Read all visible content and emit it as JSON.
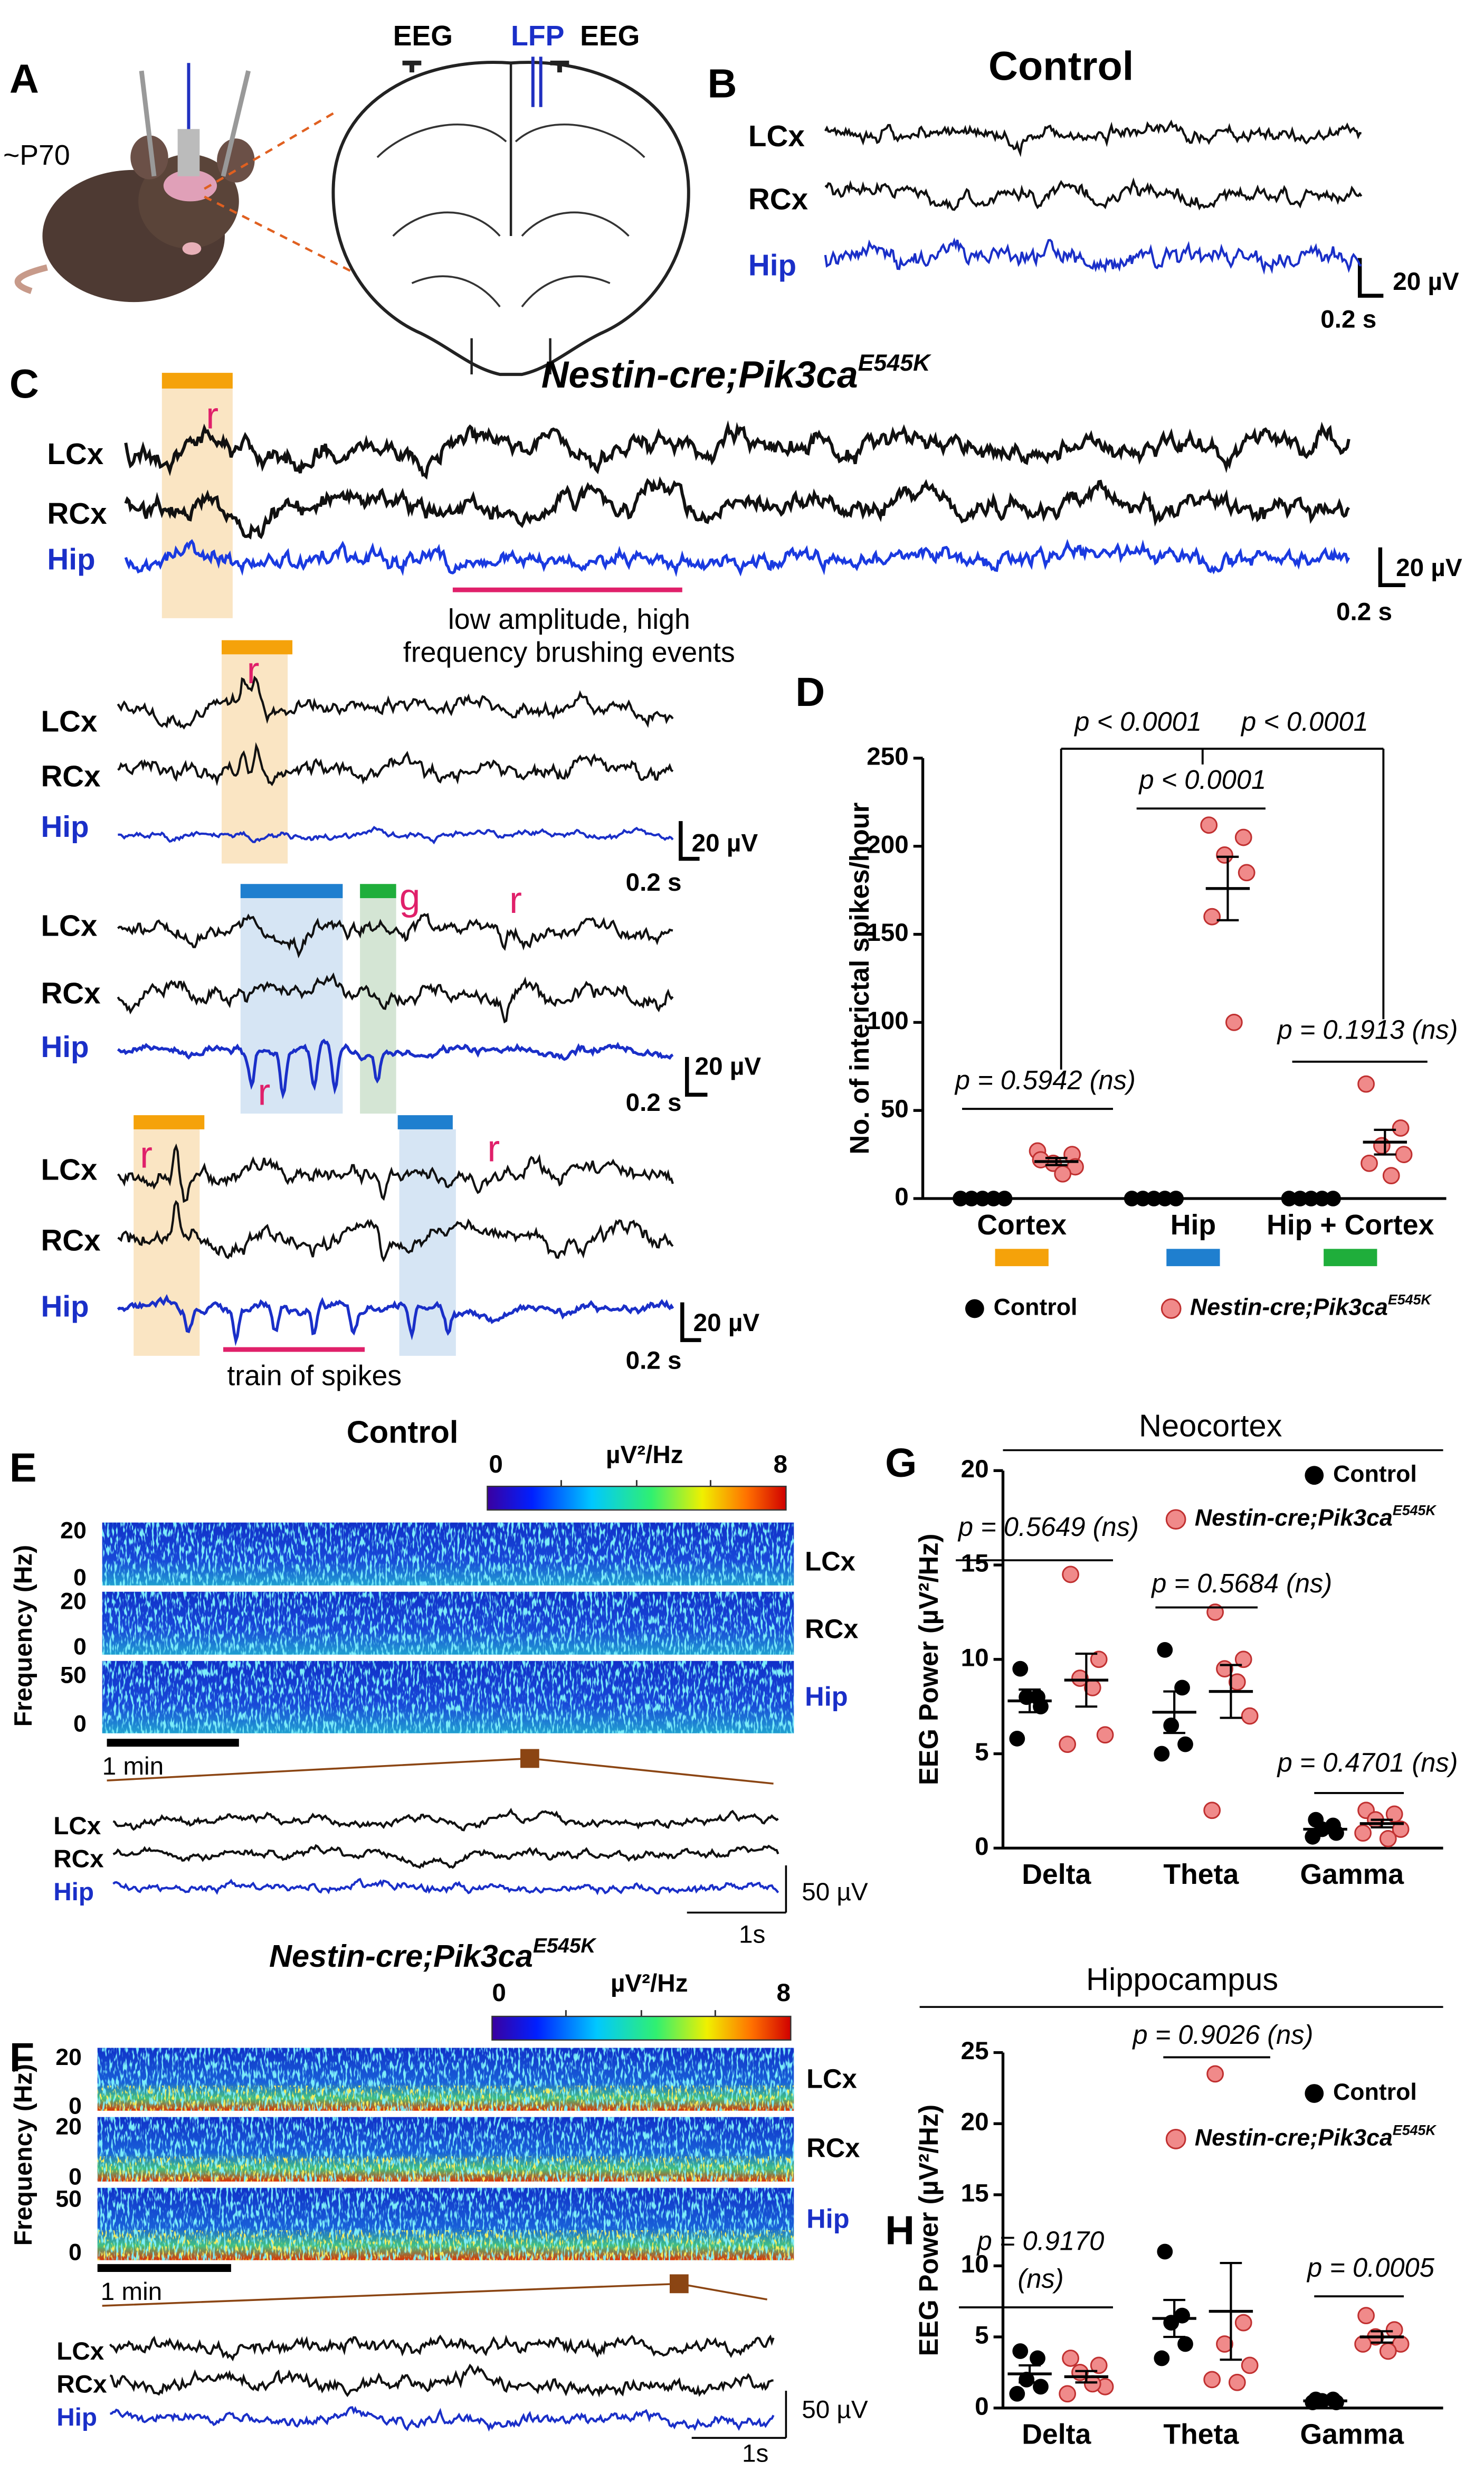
{
  "panel_A": {
    "label": "A",
    "age": "~P70",
    "electrode_left": "EEG",
    "electrode_center": "LFP",
    "electrode_right": "EEG"
  },
  "panel_B": {
    "label": "B",
    "title": "Control",
    "channels": [
      "LCx",
      "RCx",
      "Hip"
    ],
    "scale_voltage": "20 µV",
    "scale_time": "0.2 s"
  },
  "panel_C": {
    "label": "C",
    "title": "Nestin-cre;Pik3ca",
    "title_sup": "E545K",
    "channels": [
      "LCx",
      "RCx",
      "Hip"
    ],
    "scale_voltage": "20 µV",
    "scale_time": "0.2 s",
    "marker_r": "r",
    "marker_g": "g",
    "brushing_note": [
      "low amplitude, high",
      "frequency brushing events"
    ],
    "train_note": "train of spikes"
  },
  "chart_data": [
    {
      "panel": "D",
      "type": "dotplot",
      "ylabel": "No. of interictal spikes/hour",
      "categories": [
        "Cortex",
        "Hip",
        "Hip + Cortex"
      ],
      "category_colors": [
        "#f5a20a",
        "#1f7fcf",
        "#1fae3b"
      ],
      "ylim": [
        0,
        250
      ],
      "yticks": [
        0,
        50,
        100,
        150,
        200,
        250
      ],
      "legend": "below",
      "series": [
        {
          "name": "Control",
          "color": "#000000",
          "values": [
            [
              0,
              0,
              0,
              0,
              0
            ],
            [
              0,
              0,
              0,
              0,
              0
            ],
            [
              0,
              0,
              0,
              0,
              0
            ]
          ],
          "mean": [
            0,
            0,
            0
          ],
          "sem": [
            0,
            0,
            0
          ]
        },
        {
          "name": "Nestin-cre;Pik3ca",
          "name_sup": "E545K",
          "color": "#f08a8a",
          "values": [
            [
              27,
              25,
              20,
              18,
              22,
              14
            ],
            [
              212,
              205,
              195,
              185,
              160,
              100
            ],
            [
              65,
              40,
              30,
              25,
              20,
              13
            ]
          ],
          "mean": [
            21,
            176,
            32
          ],
          "sem": [
            2,
            18,
            7
          ]
        }
      ],
      "annotations": [
        "p < 0.0001",
        "p < 0.0001",
        "p < 0.0001",
        "p = 0.5942 (ns)",
        "p = 0.1913 (ns)"
      ]
    },
    {
      "panel": "G",
      "type": "dotplot",
      "title": "Neocortex",
      "ylabel": "EEG Power (µV²/Hz)",
      "categories": [
        "Delta",
        "Theta",
        "Gamma"
      ],
      "ylim": [
        0,
        20
      ],
      "yticks": [
        0,
        5,
        10,
        15,
        20
      ],
      "legend": "upper right",
      "series": [
        {
          "name": "Control",
          "color": "#000000",
          "values": [
            [
              9.5,
              8,
              8,
              7.5,
              5.8
            ],
            [
              10.5,
              8.5,
              6.5,
              5.5,
              5
            ],
            [
              1.5,
              1.2,
              1,
              0.8,
              0.6
            ]
          ],
          "mean": [
            7.8,
            7.2,
            1.0
          ],
          "sem": [
            0.6,
            1.1,
            0.2
          ]
        },
        {
          "name": "Nestin-cre;Pik3ca",
          "name_sup": "E545K",
          "color": "#f08a8a",
          "values": [
            [
              14.5,
              10,
              9,
              6,
              5.5,
              8.5
            ],
            [
              12.5,
              10,
              9.5,
              7,
              2,
              8.8
            ],
            [
              2,
              1.8,
              1.5,
              1,
              0.8,
              0.5
            ]
          ],
          "mean": [
            8.9,
            8.3,
            1.3
          ],
          "sem": [
            1.4,
            1.4,
            0.2
          ]
        }
      ],
      "annotations": [
        "p = 0.5649 (ns)",
        "p = 0.5684 (ns)",
        "p = 0.4701 (ns)"
      ]
    },
    {
      "panel": "H",
      "type": "dotplot",
      "title": "Hippocampus",
      "ylabel": "EEG Power (µV²/Hz)",
      "categories": [
        "Delta",
        "Theta",
        "Gamma"
      ],
      "ylim": [
        0,
        25
      ],
      "yticks": [
        0,
        5,
        10,
        15,
        20,
        25
      ],
      "legend": "upper right",
      "series": [
        {
          "name": "Control",
          "color": "#000000",
          "values": [
            [
              4,
              3.5,
              2,
              1.5,
              1
            ],
            [
              11,
              6.5,
              6,
              4.5,
              3.5
            ],
            [
              0.6,
              0.6,
              0.5,
              0.4,
              0.4
            ]
          ],
          "mean": [
            2.4,
            6.3,
            0.5
          ],
          "sem": [
            0.6,
            1.3,
            0.1
          ]
        },
        {
          "name": "Nestin-cre;Pik3ca",
          "name_sup": "E545K",
          "color": "#f08a8a",
          "values": [
            [
              3.5,
              3,
              2.5,
              1.5,
              1,
              1.7
            ],
            [
              23.5,
              6,
              4.5,
              3,
              2,
              1.8
            ],
            [
              6.5,
              5.5,
              5,
              4.5,
              4.5,
              4
            ]
          ],
          "mean": [
            2.2,
            6.8,
            5
          ],
          "sem": [
            0.4,
            3.4,
            0.4
          ]
        }
      ],
      "annotations": [
        "p = 0.9170",
        "(ns)",
        "p = 0.9026 (ns)",
        "p = 0.0005"
      ]
    }
  ],
  "panel_E": {
    "label": "E",
    "title": "Control",
    "colorbar_min": 0,
    "colorbar_unit": "µV²/Hz",
    "colorbar_max": 8,
    "ylabel": "Frequency (Hz)",
    "freq_ticks": [
      20,
      0,
      20,
      0,
      50,
      0
    ],
    "channels": [
      "LCx",
      "RCx",
      "Hip"
    ],
    "time_scale": "1 min",
    "scale_voltage": "50 µV",
    "scale_time": "1s"
  },
  "panel_F": {
    "label": "F",
    "title": "Nestin-cre;Pik3ca",
    "title_sup": "E545K",
    "colorbar_min": 0,
    "colorbar_unit": "µV²/Hz",
    "colorbar_max": 8,
    "ylabel": "Frequency (Hz)",
    "freq_ticks": [
      20,
      0,
      20,
      0,
      50,
      0
    ],
    "channels": [
      "LCx",
      "RCx",
      "Hip"
    ],
    "time_scale": "1 min",
    "scale_voltage": "50 µV",
    "scale_time": "1s"
  }
}
